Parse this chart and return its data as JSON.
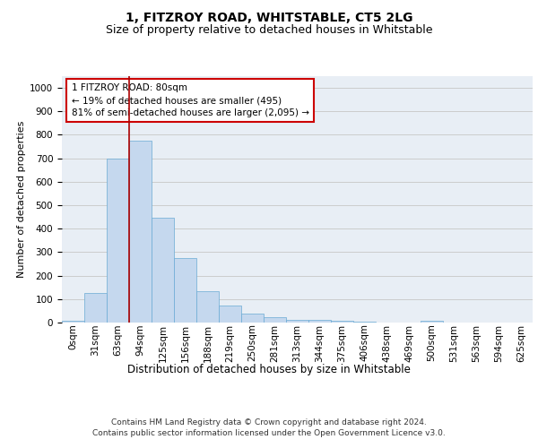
{
  "title": "1, FITZROY ROAD, WHITSTABLE, CT5 2LG",
  "subtitle": "Size of property relative to detached houses in Whitstable",
  "xlabel": "Distribution of detached houses by size in Whitstable",
  "ylabel": "Number of detached properties",
  "categories": [
    "0sqm",
    "31sqm",
    "63sqm",
    "94sqm",
    "125sqm",
    "156sqm",
    "188sqm",
    "219sqm",
    "250sqm",
    "281sqm",
    "313sqm",
    "344sqm",
    "375sqm",
    "406sqm",
    "438sqm",
    "469sqm",
    "500sqm",
    "531sqm",
    "563sqm",
    "594sqm",
    "625sqm"
  ],
  "values": [
    7,
    127,
    700,
    775,
    445,
    275,
    133,
    72,
    38,
    23,
    13,
    12,
    8,
    5,
    0,
    0,
    8,
    0,
    0,
    0,
    0
  ],
  "bar_color": "#c5d8ee",
  "bar_edge_color": "#6aaad4",
  "bar_width": 1.0,
  "vline_x": 2.5,
  "vline_color": "#aa0000",
  "annotation_text": "1 FITZROY ROAD: 80sqm\n← 19% of detached houses are smaller (495)\n81% of semi-detached houses are larger (2,095) →",
  "annotation_box_facecolor": "#ffffff",
  "annotation_box_edgecolor": "#cc0000",
  "ylim": [
    0,
    1050
  ],
  "yticks": [
    0,
    100,
    200,
    300,
    400,
    500,
    600,
    700,
    800,
    900,
    1000
  ],
  "grid_color": "#cccccc",
  "bg_color": "#e8eef5",
  "title_fontsize": 10,
  "subtitle_fontsize": 9,
  "axis_label_fontsize": 8,
  "tick_fontsize": 7.5,
  "xlabel_fontsize": 8.5,
  "footer_text": "Contains HM Land Registry data © Crown copyright and database right 2024.\nContains public sector information licensed under the Open Government Licence v3.0.",
  "footer_fontsize": 6.5
}
